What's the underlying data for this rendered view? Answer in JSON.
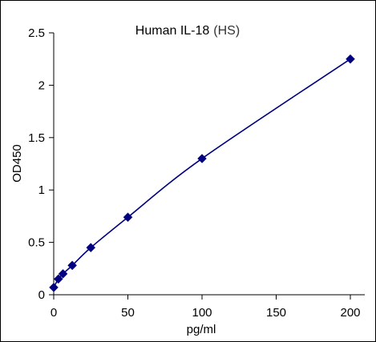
{
  "chart_data": {
    "type": "line",
    "title": "Human IL-18",
    "title_suffix": "(HS)",
    "xlabel": "pg/ml",
    "ylabel": "OD450",
    "xlim": [
      0,
      200
    ],
    "ylim": [
      0,
      2.5
    ],
    "xticks": [
      0,
      50,
      100,
      150,
      200
    ],
    "yticks": [
      0,
      0.5,
      1,
      1.5,
      2,
      2.5
    ],
    "xtick_labels": [
      "0",
      "50",
      "100",
      "150",
      "200"
    ],
    "ytick_labels": [
      "0",
      "0.5",
      "1",
      "1.5",
      "2",
      "2.5"
    ],
    "grid": false,
    "legend": "none",
    "series": [
      {
        "x": [
          0,
          3.125,
          6.25,
          12.5,
          25,
          50,
          100,
          200
        ],
        "y": [
          0.07,
          0.15,
          0.2,
          0.28,
          0.45,
          0.74,
          1.3,
          2.25
        ],
        "color": "#000080",
        "marker": "diamond"
      }
    ]
  }
}
